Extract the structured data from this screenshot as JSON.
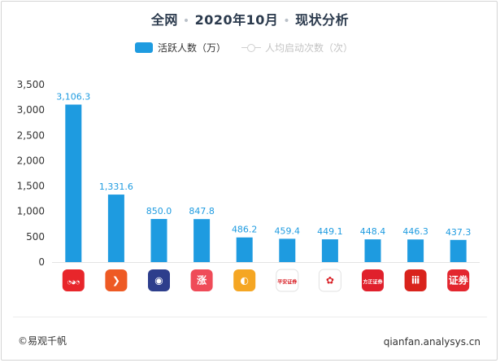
{
  "title": {
    "scope": "全网",
    "period": "2020年10月",
    "topic": "现状分析"
  },
  "legend": {
    "series_active": "活跃人数（万）",
    "series_launches": "人均启动次数（次）"
  },
  "colors": {
    "bar": "#1e9be0",
    "inactive_legend": "#c4c4c4"
  },
  "chart_data": {
    "type": "bar",
    "categories": [
      "app-1",
      "app-2",
      "app-3",
      "app-4",
      "app-5",
      "app-6",
      "app-7",
      "app-8",
      "app-9",
      "app-10"
    ],
    "series": [
      {
        "name": "活跃人数（万）",
        "values": [
          3106.3,
          1331.6,
          850.0,
          847.8,
          486.2,
          459.4,
          449.1,
          448.4,
          446.3,
          437.3
        ]
      }
    ],
    "value_labels": [
      "3,106.3",
      "1,331.6",
      "850.0",
      "847.8",
      "486.2",
      "459.4",
      "449.1",
      "448.4",
      "446.3",
      "437.3"
    ],
    "yticks": [
      "0",
      "500",
      "1,000",
      "1,500",
      "2,000",
      "2,500",
      "3,000",
      "3,500"
    ],
    "ylim": [
      0,
      3500
    ],
    "grid": false,
    "legend_position": "top-center",
    "xaxis_labels": "app icons"
  },
  "app_icons": [
    {
      "name": "app-icon-1",
      "bg": "#e8262b",
      "glyph": "◔◕◔"
    },
    {
      "name": "app-icon-2",
      "bg": "#ee5a24",
      "glyph": "❯"
    },
    {
      "name": "app-icon-3",
      "bg": "#2d3e8c",
      "glyph": "◉"
    },
    {
      "name": "app-icon-4",
      "bg": "#ef4b58",
      "glyph": "涨"
    },
    {
      "name": "app-icon-5",
      "bg": "#f5a623",
      "glyph": "◐"
    },
    {
      "name": "app-icon-6",
      "bg": "#ffffff",
      "glyph": "平安证券"
    },
    {
      "name": "app-icon-7",
      "bg": "#ffffff",
      "glyph": "✿"
    },
    {
      "name": "app-icon-8",
      "bg": "#e0202c",
      "glyph": "方正证券"
    },
    {
      "name": "app-icon-9",
      "bg": "#d9231c",
      "glyph": "ⅲ"
    },
    {
      "name": "app-icon-10",
      "bg": "#e3262e",
      "glyph": "证券"
    }
  ],
  "footer": {
    "source": "©易观千帆",
    "site": "qianfan.analysys.cn"
  }
}
